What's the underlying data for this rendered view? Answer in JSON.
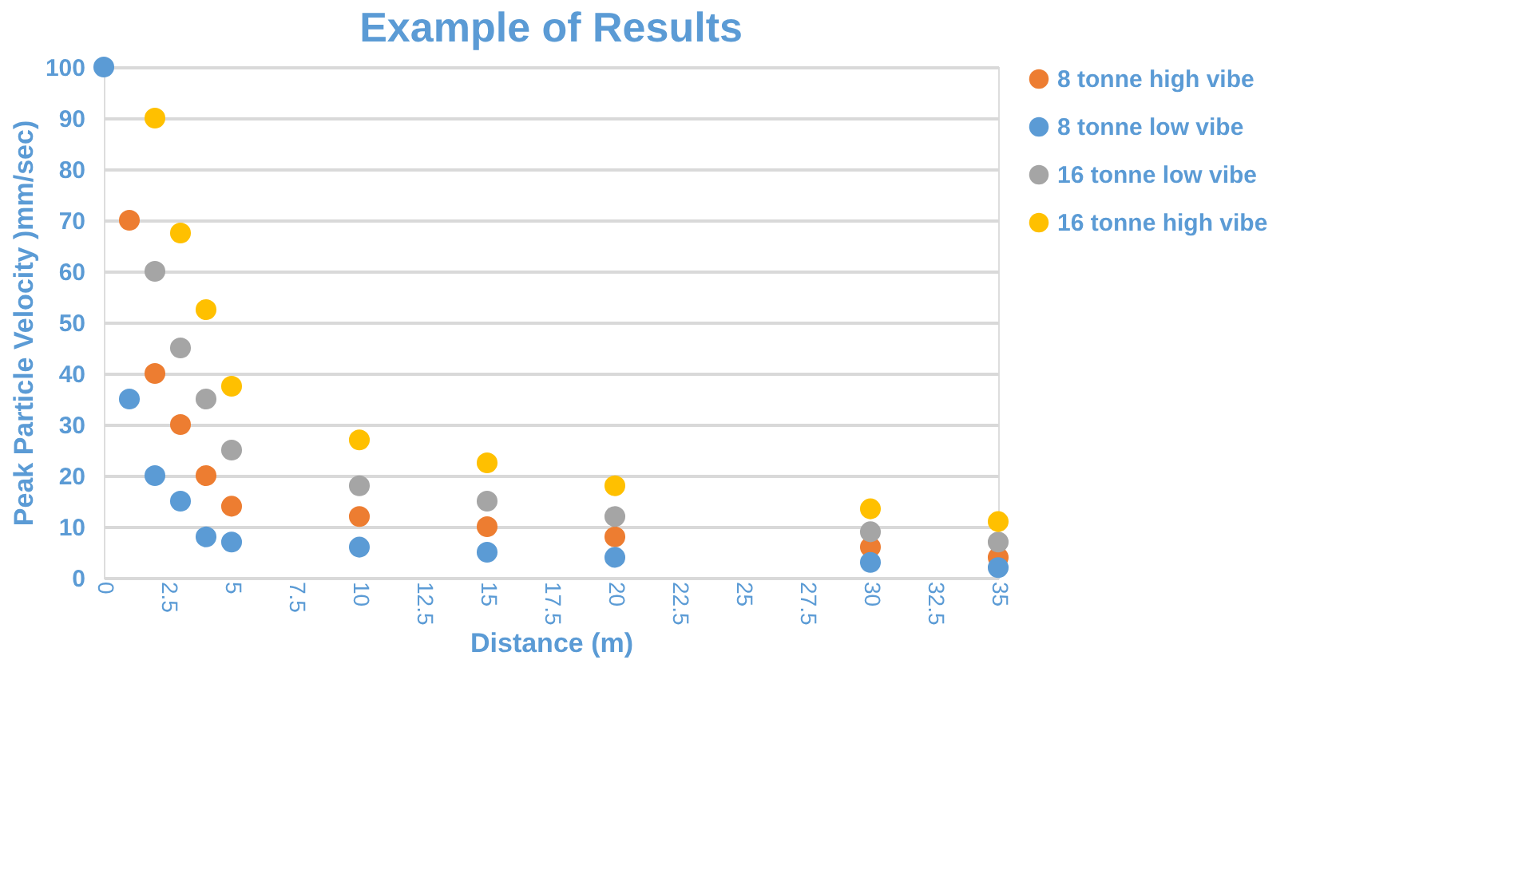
{
  "chart_data": {
    "type": "scatter",
    "title": "Example of Results",
    "xlabel": "Distance (m)",
    "ylabel": "Peak Particle Velocity )mm/sec)",
    "series": [
      {
        "name": "8 tonne high vibe",
        "color": "#ed7d31",
        "x": [
          1,
          2,
          3,
          4,
          5,
          10,
          15,
          20,
          30,
          35
        ],
        "values": [
          70,
          40,
          30,
          20,
          14,
          12,
          10,
          8,
          6,
          4
        ]
      },
      {
        "name": "8 tonne low vibe",
        "color": "#5b9bd5",
        "x": [
          0,
          1,
          2,
          3,
          4,
          5,
          10,
          15,
          20,
          30,
          35
        ],
        "values": [
          100,
          35,
          20,
          15,
          8,
          7,
          6,
          5,
          4,
          3,
          2
        ]
      },
      {
        "name": "16 tonne low vibe",
        "color": "#a5a5a5",
        "x": [
          2,
          3,
          4,
          5,
          10,
          15,
          20,
          30,
          35
        ],
        "values": [
          60,
          45,
          35,
          25,
          18,
          15,
          12,
          9,
          7
        ]
      },
      {
        "name": "16 tonne high vibe",
        "color": "#ffc000",
        "x": [
          2,
          3,
          4,
          5,
          10,
          15,
          20,
          30,
          35
        ],
        "values": [
          90,
          67.5,
          52.5,
          37.5,
          27,
          22.5,
          18,
          13.5,
          11
        ]
      }
    ],
    "xlim": [
      0,
      35
    ],
    "xticks": [
      0,
      2.5,
      5,
      7.5,
      10,
      12.5,
      15,
      17.5,
      20,
      22.5,
      25,
      27.5,
      30,
      32.5,
      35
    ],
    "ylim": [
      0,
      100
    ],
    "yticks": [
      0,
      10,
      20,
      30,
      40,
      50,
      60,
      70,
      80,
      90,
      100
    ],
    "grid": "y",
    "legend": "right",
    "marker": "circle"
  }
}
